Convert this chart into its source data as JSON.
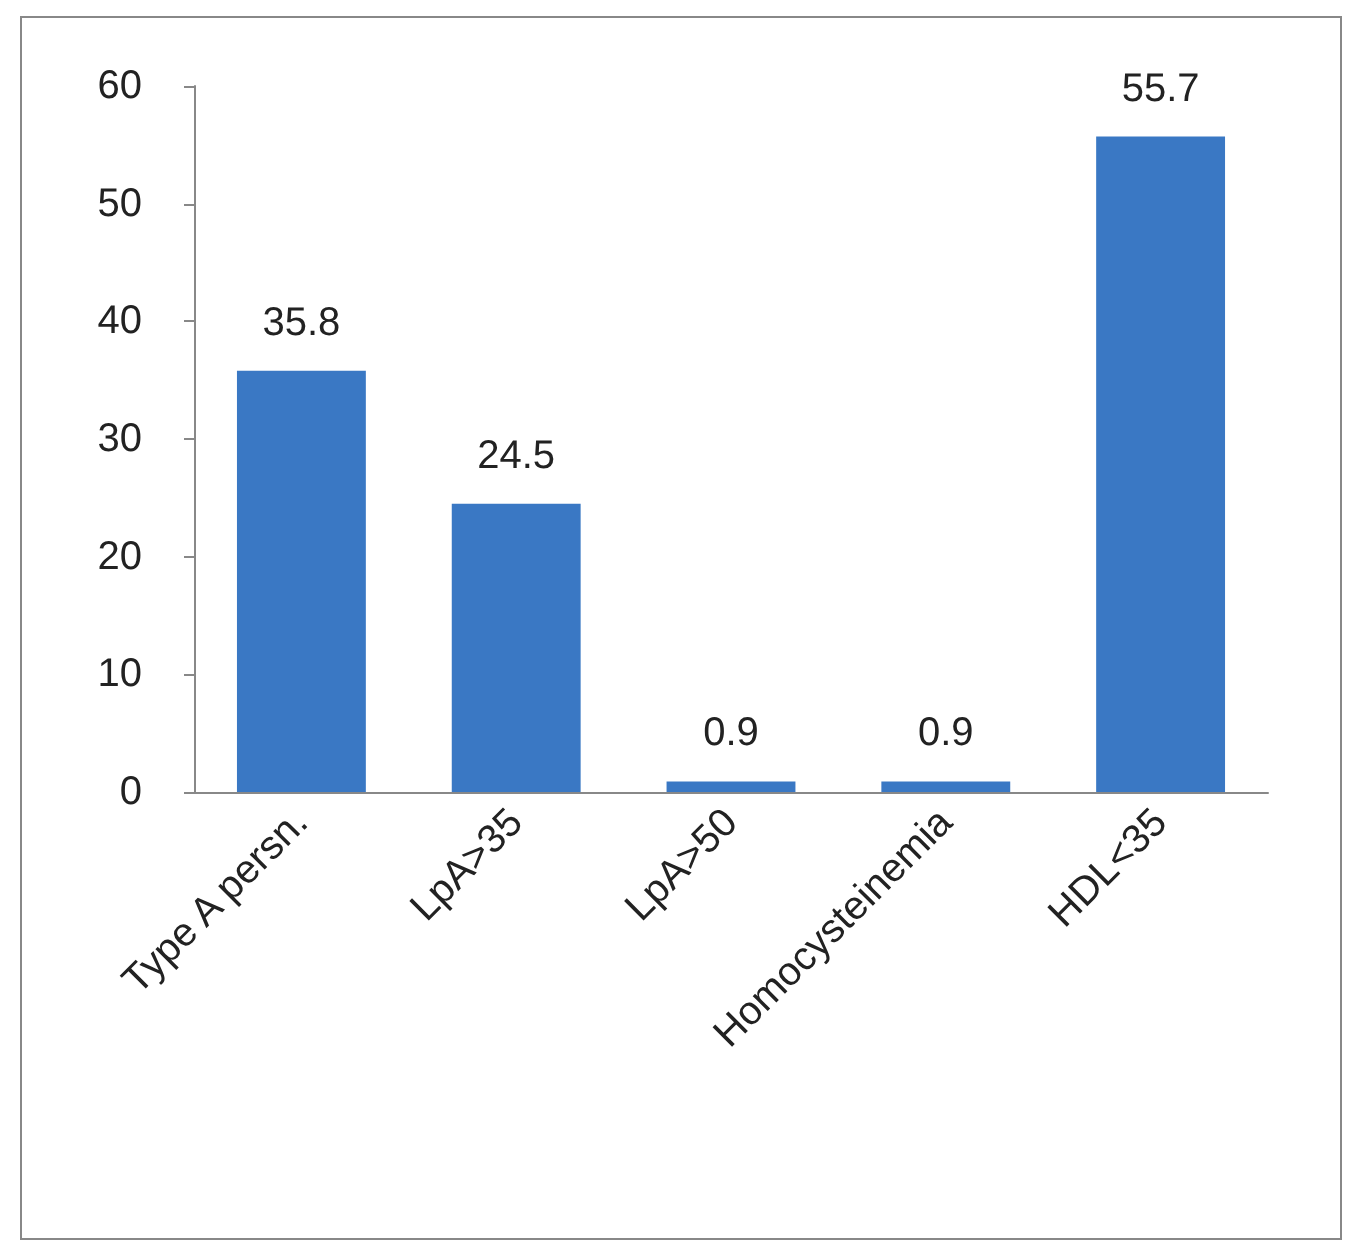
{
  "chart_data": {
    "type": "bar",
    "categories": [
      "Type A persn.",
      "LpA>35",
      "LpA>50",
      "Homocysteinemia",
      "HDL<35"
    ],
    "values": [
      35.8,
      24.5,
      0.9,
      0.9,
      55.7
    ],
    "color": "#3a78c4",
    "ylim": [
      0,
      60
    ],
    "yticks": [
      0,
      10,
      20,
      30,
      40,
      50,
      60
    ],
    "grid": false,
    "data_labels": true
  }
}
